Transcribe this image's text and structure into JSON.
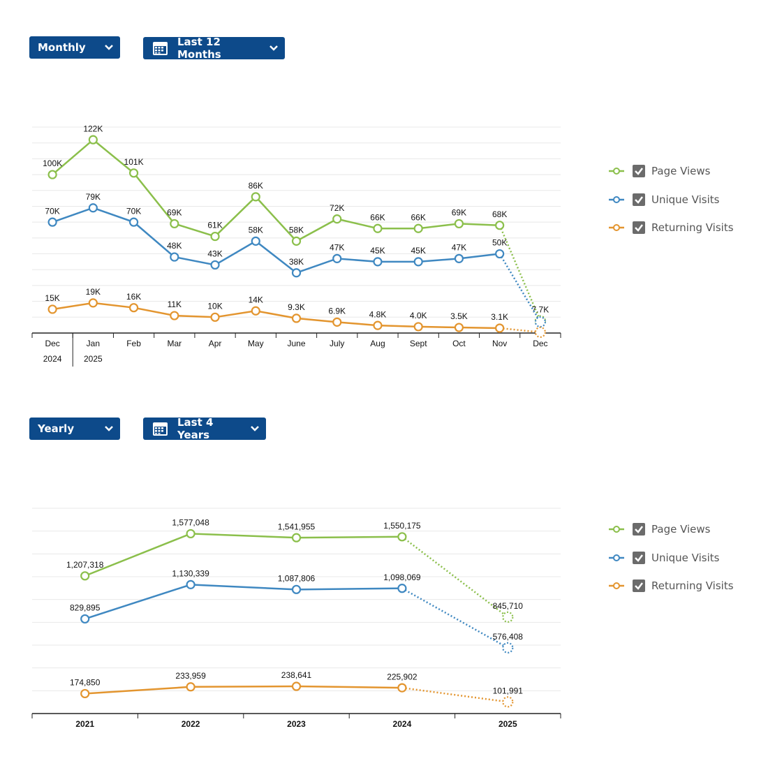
{
  "controls": [
    {
      "interval": "Monthly",
      "range": "Last 12 Months"
    },
    {
      "interval": "Yearly",
      "range": "Last 4 Years"
    }
  ],
  "chart_data": [
    {
      "type": "line",
      "categories": [
        "Dec",
        "Jan",
        "Feb",
        "Mar",
        "Apr",
        "May",
        "June",
        "July",
        "Aug",
        "Sept",
        "Oct",
        "Nov",
        "Dec"
      ],
      "x_groups": [
        {
          "label": "2024",
          "start": 0
        },
        {
          "label": "2025",
          "start": 1
        }
      ],
      "ylim": [
        0,
        130000
      ],
      "yticks": [
        0,
        10000,
        20000,
        30000,
        40000,
        50000,
        60000,
        70000,
        80000,
        90000,
        100000,
        110000,
        120000,
        130000
      ],
      "grid": true,
      "legend": "right",
      "last_point_partial": true,
      "series": [
        {
          "name": "Page Views",
          "color": "#8bbf4b",
          "values": [
            100000,
            122000,
            101000,
            69000,
            61000,
            86000,
            58000,
            72000,
            66000,
            66000,
            69000,
            68000,
            7700
          ],
          "value_labels": [
            "100K",
            "122K",
            "101K",
            "69K",
            "61K",
            "86K",
            "58K",
            "72K",
            "66K",
            "66K",
            "69K",
            "68K",
            "7.7K"
          ]
        },
        {
          "name": "Unique Visits",
          "color": "#3f88c1",
          "values": [
            70000,
            79000,
            70000,
            48000,
            43000,
            58000,
            38000,
            47000,
            45000,
            45000,
            47000,
            50000,
            7000
          ],
          "value_labels": [
            "70K",
            "79K",
            "70K",
            "48K",
            "43K",
            "58K",
            "38K",
            "47K",
            "45K",
            "45K",
            "47K",
            "50K",
            null
          ]
        },
        {
          "name": "Returning Visits",
          "color": "#e3952f",
          "values": [
            15000,
            19000,
            16000,
            11000,
            10000,
            14000,
            9300,
            6900,
            4800,
            4000,
            3500,
            3100,
            500
          ],
          "value_labels": [
            "15K",
            "19K",
            "16K",
            "11K",
            "10K",
            "14K",
            "9.3K",
            "6.9K",
            "4.8K",
            "4.0K",
            "3.5K",
            "3.1K",
            null
          ]
        }
      ]
    },
    {
      "type": "line",
      "categories": [
        "2021",
        "2022",
        "2023",
        "2024",
        "2025"
      ],
      "ylim": [
        0,
        1800000
      ],
      "yticks": [
        0,
        200000,
        400000,
        600000,
        800000,
        1000000,
        1200000,
        1400000,
        1600000,
        1800000
      ],
      "grid": true,
      "legend": "right",
      "last_point_partial": true,
      "series": [
        {
          "name": "Page Views",
          "color": "#8bbf4b",
          "values": [
            1207318,
            1577048,
            1541955,
            1550175,
            845710
          ],
          "value_labels": [
            "1,207,318",
            "1,577,048",
            "1,541,955",
            "1,550,175",
            "845,710"
          ]
        },
        {
          "name": "Unique Visits",
          "color": "#3f88c1",
          "values": [
            829895,
            1130339,
            1087806,
            1098069,
            576408
          ],
          "value_labels": [
            "829,895",
            "1,130,339",
            "1,087,806",
            "1,098,069",
            "576,408"
          ]
        },
        {
          "name": "Returning Visits",
          "color": "#e3952f",
          "values": [
            174850,
            233959,
            238641,
            225902,
            101991
          ],
          "value_labels": [
            "174,850",
            "233,959",
            "238,641",
            "225,902",
            "101,991"
          ]
        }
      ]
    }
  ]
}
